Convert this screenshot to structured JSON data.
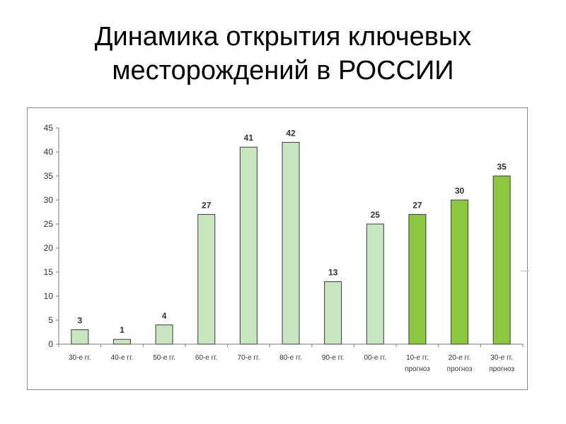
{
  "title": {
    "line1": "Динамика открытия ключевых",
    "line2": "месторождений в РОССИИ"
  },
  "colors": {
    "historical_fill": "#c8e6c0",
    "historical_stroke": "#3a3a3a",
    "forecast_fill": "#8dc63f",
    "forecast_stroke": "#3a3a3a"
  },
  "chart_data": {
    "type": "bar",
    "title": "Динамика открытия ключевых месторождений в РОССИИ",
    "xlabel": "",
    "ylabel": "",
    "ylim": [
      0,
      45
    ],
    "yticks": [
      0,
      5,
      10,
      15,
      20,
      25,
      30,
      35,
      40,
      45
    ],
    "grid": false,
    "legend": "none",
    "categories": [
      [
        "30-е гг."
      ],
      [
        "40-е гг."
      ],
      [
        "50-е гг."
      ],
      [
        "60-е гг."
      ],
      [
        "70-е гг."
      ],
      [
        "80-е гг."
      ],
      [
        "90-е гг."
      ],
      [
        "00-е гг."
      ],
      [
        "10-е гг.",
        "прогноз"
      ],
      [
        "20-е гг.",
        "прогноз"
      ],
      [
        "30-е гг.",
        "прогноз"
      ]
    ],
    "values": [
      3,
      1,
      4,
      27,
      41,
      42,
      13,
      25,
      27,
      30,
      35
    ],
    "forecast": [
      false,
      false,
      false,
      false,
      false,
      false,
      false,
      false,
      true,
      true,
      true
    ]
  }
}
